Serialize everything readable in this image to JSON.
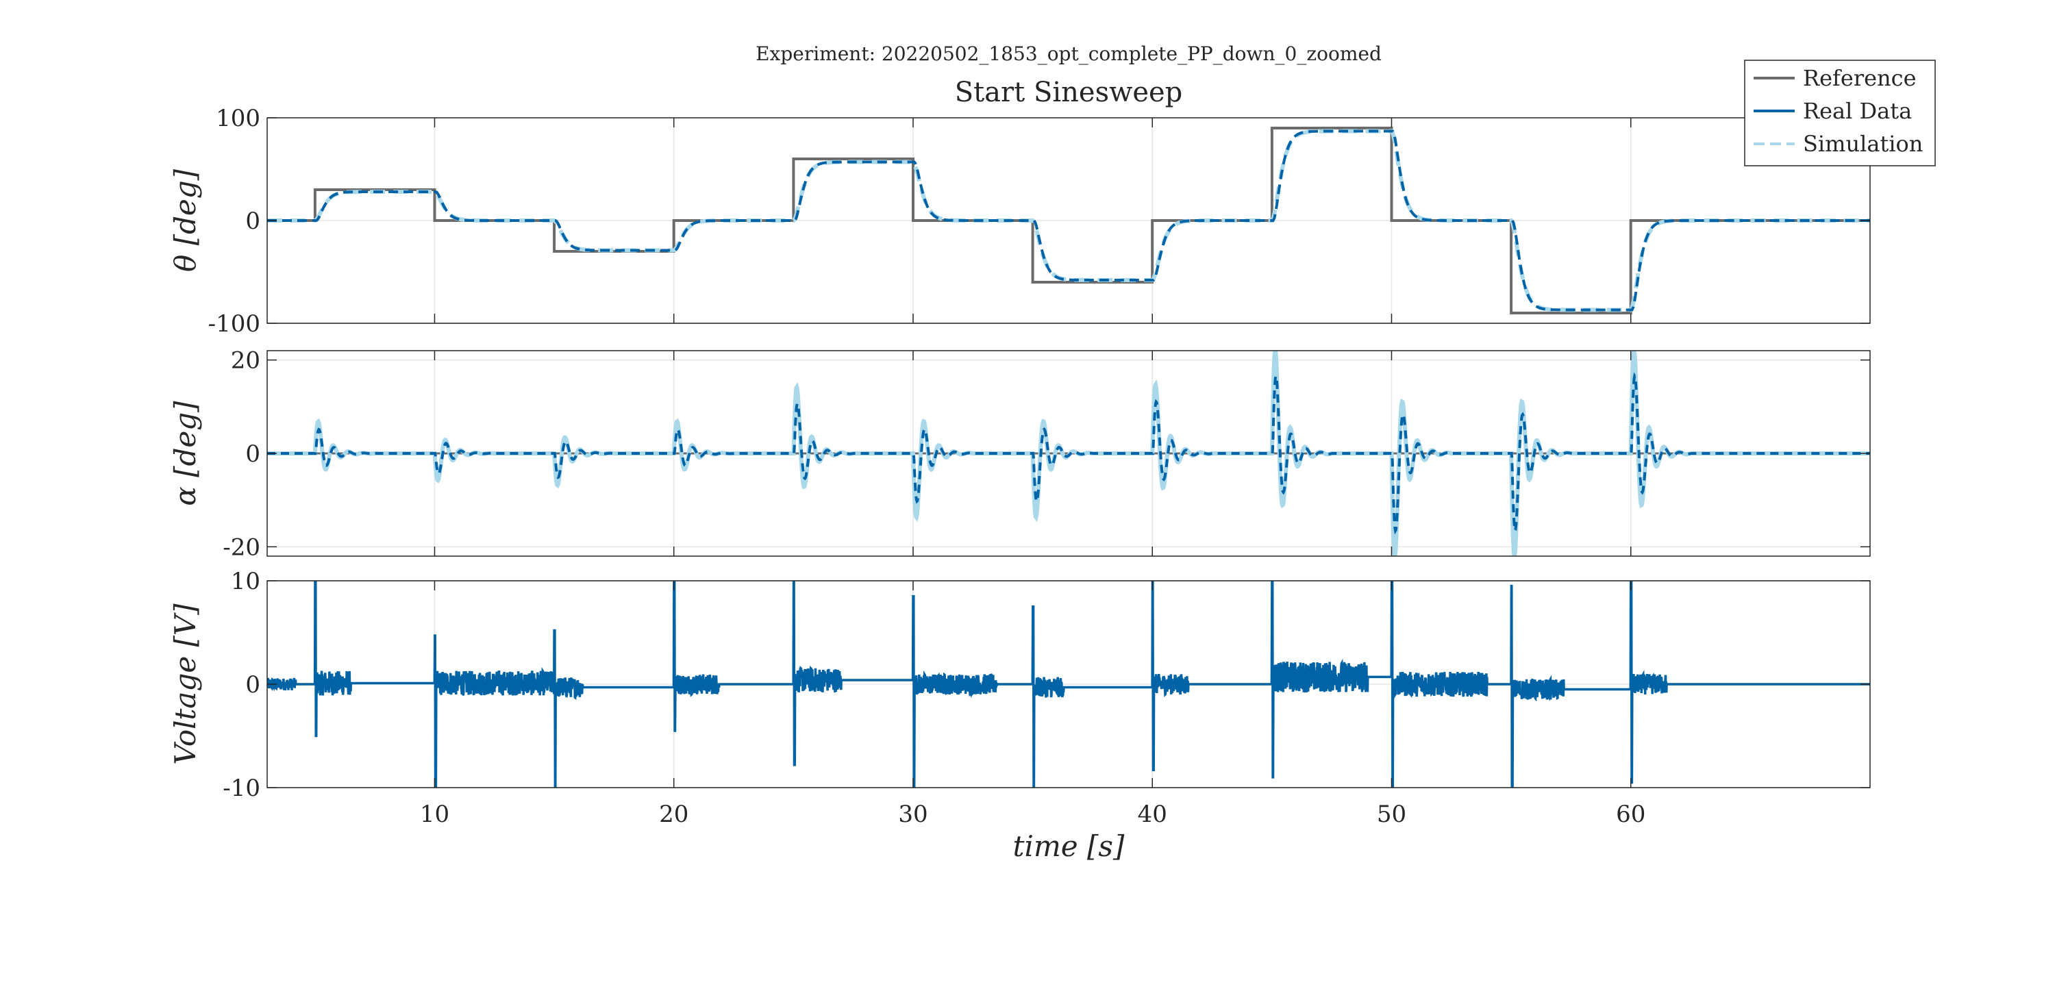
{
  "figure": {
    "suptitle": "Experiment: 20220502_1853_opt_complete_PP_down_0_zoomed",
    "title": "Start Sinesweep"
  },
  "legend": {
    "placement": "top-right",
    "entries": [
      {
        "label": "Reference",
        "color": "#6b6b6b",
        "style": "solid"
      },
      {
        "label": "Real Data",
        "color": "#0063a6",
        "style": "solid"
      },
      {
        "label": "Simulation",
        "color": "#a8d8ea",
        "style": "dashed"
      }
    ]
  },
  "colors": {
    "reference": "#6b6b6b",
    "real": "#0063a6",
    "simulation": "#a8d8ea",
    "grid": "#e6e6e6",
    "axis": "#262626"
  },
  "chart_data": [
    {
      "type": "line",
      "ylabel": "θ [deg]",
      "ylim": [
        -100,
        100
      ],
      "yticks": [
        -100,
        0,
        100
      ],
      "xlim": [
        3,
        70
      ],
      "xticks": [
        10,
        20,
        30,
        40,
        50,
        60
      ],
      "grid": true,
      "step_times": [
        5,
        10,
        15,
        20,
        25,
        30,
        35,
        40,
        45,
        50,
        55,
        60
      ],
      "reference_levels": [
        0,
        30,
        0,
        -30,
        0,
        60,
        0,
        -60,
        0,
        90,
        0,
        -90,
        0
      ],
      "real_levels": [
        0,
        28,
        0,
        -29,
        0,
        57,
        0,
        -58,
        0,
        87,
        0,
        -87,
        0
      ]
    },
    {
      "type": "line",
      "ylabel": "α [deg]",
      "ylim": [
        -22,
        22
      ],
      "yticks": [
        -20,
        0,
        20
      ],
      "xlim": [
        3,
        70
      ],
      "xticks": [
        10,
        20,
        30,
        40,
        50,
        60
      ],
      "grid": true,
      "spike_times": [
        5,
        10,
        15,
        20,
        25,
        30,
        35,
        40,
        45,
        50,
        55,
        60
      ],
      "spike_peaks": [
        6.5,
        -5.5,
        -6.5,
        6.5,
        13.5,
        -13.0,
        -13.0,
        14.0,
        21.0,
        -21.0,
        -21.0,
        21.0
      ]
    },
    {
      "type": "line",
      "ylabel": "Voltage [V]",
      "xlabel": "time [s]",
      "ylim": [
        -10,
        10
      ],
      "yticks": [
        -10,
        0,
        10
      ],
      "xlim": [
        3,
        70
      ],
      "xticks": [
        10,
        20,
        30,
        40,
        50,
        60
      ],
      "tick_labels": [
        "10",
        "20",
        "30",
        "40",
        "50",
        "60"
      ],
      "grid": true,
      "spike_times": [
        5,
        10,
        15,
        20,
        25,
        30,
        35,
        40,
        45,
        50,
        55,
        60
      ],
      "spike_peaks": [
        10,
        4.7,
        5.2,
        10,
        10,
        8.5,
        7.5,
        10,
        10,
        10,
        9.5,
        10
      ],
      "spike_troughs": [
        -5,
        -10,
        -10,
        -4.5,
        -7.8,
        -10,
        -10,
        -8.3,
        -9,
        -10,
        -10,
        -9.5
      ],
      "noise_end_times": [
        6.5,
        16.0,
        16.2,
        21.9,
        27.0,
        33.5,
        36.3,
        41.5,
        49.0,
        54.0,
        57.2,
        61.5
      ],
      "noise_amplitude": [
        1.2,
        1.2,
        1.0,
        1.0,
        1.2,
        1.0,
        1.0,
        1.0,
        1.5,
        1.2,
        1.0,
        1.0
      ],
      "baseline_levels": [
        0,
        0.1,
        0.1,
        -0.3,
        0,
        0.4,
        0,
        -0.3,
        0,
        0.7,
        0,
        -0.5,
        0
      ]
    }
  ]
}
